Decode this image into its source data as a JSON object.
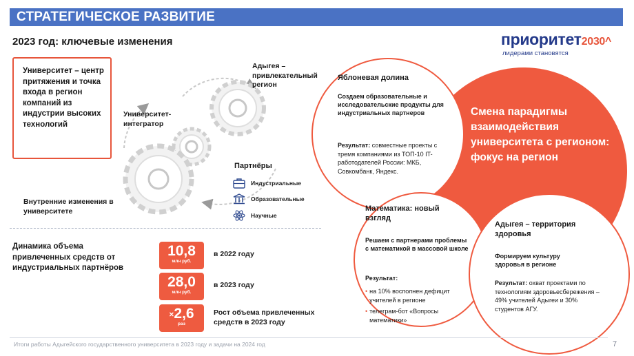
{
  "header": {
    "title": "СТРАТЕГИЧЕСКОЕ РАЗВИТИЕ"
  },
  "subtitle": "2023 год: ключевые изменения",
  "logo": {
    "main": "приоритет",
    "year": "2030",
    "mark": "^",
    "tagline": "лидерами становятся"
  },
  "diagram": {
    "university_box": "Университет – центр притяжения и точка входа в регион компаний из индустрии высоких технологий",
    "adygea_label": "Адыгея – привлекательный регион",
    "integrator_label": "Университет-интегратор",
    "internal_label": "Внутренние изменения в университете",
    "partners": {
      "title": "Партнёры",
      "items": [
        {
          "label": "Индустриальные",
          "icon": "briefcase-icon"
        },
        {
          "label": "Образовательные",
          "icon": "columns-icon"
        },
        {
          "label": "Научные",
          "icon": "atom-icon"
        }
      ]
    }
  },
  "main_circle": {
    "text": "Смена парадигмы взаимодействия университета с регионом: фокус на регион"
  },
  "apple_valley": {
    "title": "Яблоневая долина",
    "body": "Создаем образовательные и исследовательские продукты для индустриальных партнеров",
    "result_label": "Результат:",
    "result_text": "совместные проекты с тремя компаниями из ТОП-10 IT-работодателей России: МКБ, Совкомбанк, Яндекс."
  },
  "math": {
    "title": "Математика: новый взгляд",
    "body": "Решаем с партнерами проблемы с математикой в массовой школе",
    "result_label": "Результат:",
    "bullets": [
      "на 10% восполнен дефицит учителей в регионе",
      "телеграм-бот «Вопросы математики»"
    ]
  },
  "adygea_health": {
    "title": "Адыгея – территория здоровья",
    "body": "Формируем культуру здоровья в регионе",
    "result_label": "Результат:",
    "result_text": "охват проектами по технологиям здоровьесбережения – 49% учителей Адыгеи и 30% студентов АГУ."
  },
  "dynamics": {
    "title": "Динамика объема привлеченных средств от индустриальных партнёров",
    "stats": [
      {
        "value": "10,8",
        "unit": "млн руб.",
        "desc": "в 2022 году"
      },
      {
        "value": "28,0",
        "unit": "млн руб.",
        "desc": "в 2023 году"
      },
      {
        "prefix": "×",
        "value": "2,6",
        "unit": "раз",
        "desc": "Рост объема привлеченных средств в 2023 году"
      }
    ]
  },
  "footer": {
    "text": "Итоги работы Адыгейского государственного университета в 2023 году и задачи на 2024 год",
    "page": "7"
  },
  "colors": {
    "header": "#4a72c4",
    "accent": "#ef5a3f",
    "brand_blue": "#243a8a"
  }
}
